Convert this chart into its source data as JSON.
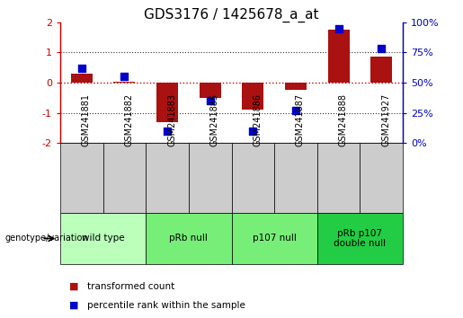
{
  "title": "GDS3176 / 1425678_a_at",
  "samples": [
    "GSM241881",
    "GSM241882",
    "GSM241883",
    "GSM241885",
    "GSM241886",
    "GSM241887",
    "GSM241888",
    "GSM241927"
  ],
  "transformed_count": [
    0.3,
    0.02,
    -1.32,
    -0.5,
    -0.9,
    -0.25,
    1.75,
    0.85
  ],
  "percentile_rank": [
    62,
    55,
    10,
    35,
    10,
    27,
    95,
    78
  ],
  "ylim_left": [
    -2,
    2
  ],
  "ylim_right": [
    0,
    100
  ],
  "bar_color": "#aa1111",
  "square_color": "#0000cc",
  "groups": [
    {
      "label": "wild type",
      "samples": [
        "GSM241881",
        "GSM241882"
      ],
      "color": "#bbffbb"
    },
    {
      "label": "pRb null",
      "samples": [
        "GSM241883",
        "GSM241885"
      ],
      "color": "#77ee77"
    },
    {
      "label": "p107 null",
      "samples": [
        "GSM241886",
        "GSM241887"
      ],
      "color": "#77ee77"
    },
    {
      "label": "pRb p107\ndouble null",
      "samples": [
        "GSM241888",
        "GSM241927"
      ],
      "color": "#22cc44"
    }
  ],
  "genotype_label": "genotype/variation",
  "legend_bar_label": "transformed count",
  "legend_sq_label": "percentile rank within the sample",
  "dotted_line_color": "#333333",
  "zero_line_color": "#cc0000",
  "bg_color": "#ffffff",
  "plot_bg_color": "#ffffff",
  "tick_color_left": "#cc0000",
  "tick_color_right": "#0000cc",
  "gray_box_color": "#cccccc",
  "title_fontsize": 11,
  "axis_fontsize": 8,
  "label_fontsize": 7.5
}
